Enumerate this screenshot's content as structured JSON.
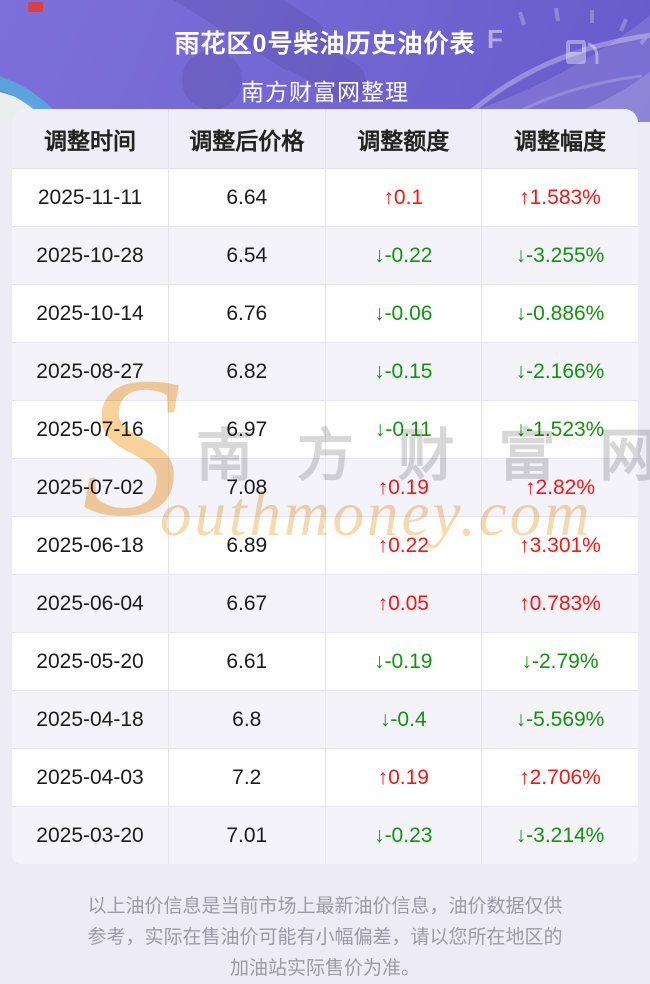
{
  "header": {
    "title": "雨花区0号柴油历史油价表",
    "subtitle": "南方财富网整理"
  },
  "table": {
    "columns": [
      "调整时间",
      "调整后价格",
      "调整额度",
      "调整幅度"
    ],
    "rows": [
      {
        "date": "2025-11-11",
        "price": "6.64",
        "change": "↑0.1",
        "pct": "↑1.583%",
        "direction": "up"
      },
      {
        "date": "2025-10-28",
        "price": "6.54",
        "change": "↓-0.22",
        "pct": "↓-3.255%",
        "direction": "down"
      },
      {
        "date": "2025-10-14",
        "price": "6.76",
        "change": "↓-0.06",
        "pct": "↓-0.886%",
        "direction": "down"
      },
      {
        "date": "2025-08-27",
        "price": "6.82",
        "change": "↓-0.15",
        "pct": "↓-2.166%",
        "direction": "down"
      },
      {
        "date": "2025-07-16",
        "price": "6.97",
        "change": "↓-0.11",
        "pct": "↓-1.523%",
        "direction": "down"
      },
      {
        "date": "2025-07-02",
        "price": "7.08",
        "change": "↑0.19",
        "pct": "↑2.82%",
        "direction": "up"
      },
      {
        "date": "2025-06-18",
        "price": "6.89",
        "change": "↑0.22",
        "pct": "↑3.301%",
        "direction": "up"
      },
      {
        "date": "2025-06-04",
        "price": "6.67",
        "change": "↑0.05",
        "pct": "↑0.783%",
        "direction": "up"
      },
      {
        "date": "2025-05-20",
        "price": "6.61",
        "change": "↓-0.19",
        "pct": "↓-2.79%",
        "direction": "down"
      },
      {
        "date": "2025-04-18",
        "price": "6.8",
        "change": "↓-0.4",
        "pct": "↓-5.569%",
        "direction": "down"
      },
      {
        "date": "2025-04-03",
        "price": "7.2",
        "change": "↑0.19",
        "pct": "↑2.706%",
        "direction": "up"
      },
      {
        "date": "2025-03-20",
        "price": "7.01",
        "change": "↓-0.23",
        "pct": "↓-3.214%",
        "direction": "down"
      }
    ]
  },
  "watermark": {
    "s_letter": "S",
    "cn_text": "南 方 财 富 网",
    "en_text": "outhmoney.com"
  },
  "footer": {
    "disclaimer": "以上油价信息是当前市场上最新油价信息，油价数据仅供参考，实际在售油价可能有小幅偏差，请以您所在地区的加油站实际售价为准。"
  },
  "icons": {
    "up_arrow": "↑",
    "down_arrow": "↓",
    "gauge_f_marker": "F"
  },
  "colors": {
    "up": "#f51616",
    "down": "#13930e",
    "hero_gradient_start": "#7d70da",
    "hero_gradient_end": "#675bcb",
    "header_row_bg": "#efeef6",
    "alt_row_bg": "#f4f3fa",
    "page_bg": "#edebf4",
    "wave_blue": "#58a5db",
    "watermark_orange": "#f3d09b"
  }
}
